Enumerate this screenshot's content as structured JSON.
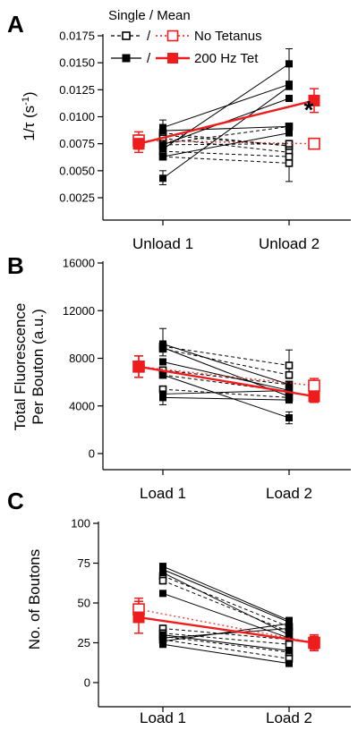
{
  "colors": {
    "black": "#000000",
    "red": "#ee1c1c",
    "pink": "#f3a0a0"
  },
  "legend": {
    "header": "Single / Mean",
    "slash": "/",
    "items": [
      {
        "label": "No Tetanus",
        "single_style": "dashed-open-square",
        "mean_style": "dotted-red-open-square"
      },
      {
        "label": "200 Hz Tet",
        "single_style": "solid-filled-square",
        "mean_style": "solid-red-filled-square"
      }
    ]
  },
  "chart_data": [
    {
      "panel": "A",
      "type": "line",
      "categories": [
        "Unload 1",
        "Unload 2"
      ],
      "ylabel_base": "1/τ (s",
      "ylabel_sup": "-1",
      "ylabel_end": ")",
      "ylim": [
        0.0,
        0.0185
      ],
      "yticks": [
        "0.0025",
        "0.0050",
        "0.0075",
        "0.0100",
        "0.0125",
        "0.0150",
        "0.0175"
      ],
      "ytick_values": [
        0.0025,
        0.005,
        0.0075,
        0.01,
        0.0125,
        0.015,
        0.0175
      ],
      "annotation": "*",
      "series": [
        {
          "group": "No Tetanus",
          "values": [
            0.0083,
            0.0073
          ]
        },
        {
          "group": "No Tetanus",
          "values": [
            0.0085,
            0.0073
          ]
        },
        {
          "group": "No Tetanus",
          "values": [
            0.008,
            0.0067
          ]
        },
        {
          "group": "No Tetanus",
          "values": [
            0.0075,
            0.0091
          ]
        },
        {
          "group": "No Tetanus",
          "values": [
            0.0074,
            0.0075
          ]
        },
        {
          "group": "No Tetanus",
          "values": [
            0.0068,
            0.0063
          ]
        },
        {
          "group": "No Tetanus",
          "values": [
            0.0063,
            0.0057
          ]
        },
        {
          "group": "200 Hz Tet",
          "values": [
            0.009,
            0.013
          ]
        },
        {
          "group": "200 Hz Tet",
          "values": [
            0.0087,
            0.0091
          ]
        },
        {
          "group": "200 Hz Tet",
          "values": [
            0.0074,
            0.0117
          ]
        },
        {
          "group": "200 Hz Tet",
          "values": [
            0.007,
            0.0149
          ]
        },
        {
          "group": "200 Hz Tet",
          "values": [
            0.0063,
            0.0085
          ]
        },
        {
          "group": "200 Hz Tet",
          "values": [
            0.0043,
            0.0128
          ]
        }
      ],
      "error_bars": [
        {
          "index": 0,
          "value": 0.0085,
          "lo": 0.0078,
          "hi": 0.0097
        },
        {
          "index": 0,
          "value": 0.0043,
          "lo": 0.0037,
          "hi": 0.005
        },
        {
          "index": 1,
          "value": 0.0149,
          "lo": 0.0133,
          "hi": 0.0163
        },
        {
          "index": 1,
          "value": 0.0057,
          "lo": 0.004,
          "hi": 0.0072
        }
      ],
      "means": [
        {
          "group": "No Tetanus",
          "values": [
            0.0078,
            0.0075
          ],
          "err": [
            0.0008,
            0.0004
          ]
        },
        {
          "group": "200 Hz Tet",
          "values": [
            0.0075,
            0.0115
          ],
          "err": [
            0.0008,
            0.0011
          ]
        }
      ]
    },
    {
      "panel": "B",
      "type": "line",
      "categories": [
        "Load 1",
        "Load 2"
      ],
      "ylabel_lines": [
        "Total Fluorescence",
        "Per Bouton (a.u.)"
      ],
      "ylim": [
        0,
        16000
      ],
      "yticks": [
        "0",
        "4000",
        "8000",
        "12000",
        "16000"
      ],
      "ytick_values": [
        0,
        4000,
        8000,
        12000,
        16000
      ],
      "series": [
        {
          "group": "No Tetanus",
          "values": [
            9000,
            7400
          ]
        },
        {
          "group": "No Tetanus",
          "values": [
            8800,
            6600
          ]
        },
        {
          "group": "No Tetanus",
          "values": [
            7000,
            5800
          ]
        },
        {
          "group": "No Tetanus",
          "values": [
            6600,
            5200
          ]
        },
        {
          "group": "No Tetanus",
          "values": [
            5400,
            4700
          ]
        },
        {
          "group": "200 Hz Tet",
          "values": [
            9200,
            5800
          ]
        },
        {
          "group": "200 Hz Tet",
          "values": [
            8900,
            4800
          ]
        },
        {
          "group": "200 Hz Tet",
          "values": [
            7700,
            5300
          ]
        },
        {
          "group": "200 Hz Tet",
          "values": [
            6600,
            3000
          ]
        },
        {
          "group": "200 Hz Tet",
          "values": [
            5000,
            5300
          ]
        },
        {
          "group": "200 Hz Tet",
          "values": [
            4700,
            4500
          ]
        }
      ],
      "error_bars": [
        {
          "index": 0,
          "value": 9200,
          "lo": 8200,
          "hi": 10500
        },
        {
          "index": 0,
          "value": 4700,
          "lo": 4100,
          "hi": 5400
        },
        {
          "index": 1,
          "value": 7400,
          "lo": 6300,
          "hi": 8700
        },
        {
          "index": 1,
          "value": 3000,
          "lo": 2500,
          "hi": 3500
        }
      ],
      "means": [
        {
          "group": "No Tetanus",
          "values": [
            7300,
            5700
          ],
          "err": [
            900,
            600
          ]
        },
        {
          "group": "200 Hz Tet",
          "values": [
            7300,
            4800
          ],
          "err": [
            900,
            500
          ]
        }
      ]
    },
    {
      "panel": "C",
      "type": "line",
      "categories": [
        "Load 1",
        "Load 2"
      ],
      "ylabel_lines": [
        "No. of Boutons"
      ],
      "ylim": [
        -5,
        100
      ],
      "yticks": [
        "0",
        "25",
        "50",
        "75",
        "100"
      ],
      "ytick_values": [
        0,
        25,
        50,
        75,
        100
      ],
      "series": [
        {
          "group": "No Tetanus",
          "values": [
            67,
            35
          ]
        },
        {
          "group": "No Tetanus",
          "values": [
            64,
            32
          ]
        },
        {
          "group": "No Tetanus",
          "values": [
            34,
            27
          ]
        },
        {
          "group": "No Tetanus",
          "values": [
            31,
            24
          ]
        },
        {
          "group": "No Tetanus",
          "values": [
            29,
            19
          ]
        },
        {
          "group": "No Tetanus",
          "values": [
            27,
            15
          ]
        },
        {
          "group": "200 Hz Tet",
          "values": [
            73,
            39
          ]
        },
        {
          "group": "200 Hz Tet",
          "values": [
            71,
            38
          ]
        },
        {
          "group": "200 Hz Tet",
          "values": [
            69,
            30
          ]
        },
        {
          "group": "200 Hz Tet",
          "values": [
            56,
            28
          ]
        },
        {
          "group": "200 Hz Tet",
          "values": [
            30,
            20
          ]
        },
        {
          "group": "200 Hz Tet",
          "values": [
            28,
            34
          ]
        },
        {
          "group": "200 Hz Tet",
          "values": [
            26,
            37
          ]
        },
        {
          "group": "200 Hz Tet",
          "values": [
            24,
            12
          ]
        }
      ],
      "error_bars": [],
      "means": [
        {
          "group": "No Tetanus",
          "values": [
            46,
            25
          ],
          "err": [
            7,
            4
          ]
        },
        {
          "group": "200 Hz Tet",
          "values": [
            41,
            25
          ],
          "err": [
            10,
            5
          ]
        }
      ]
    }
  ]
}
